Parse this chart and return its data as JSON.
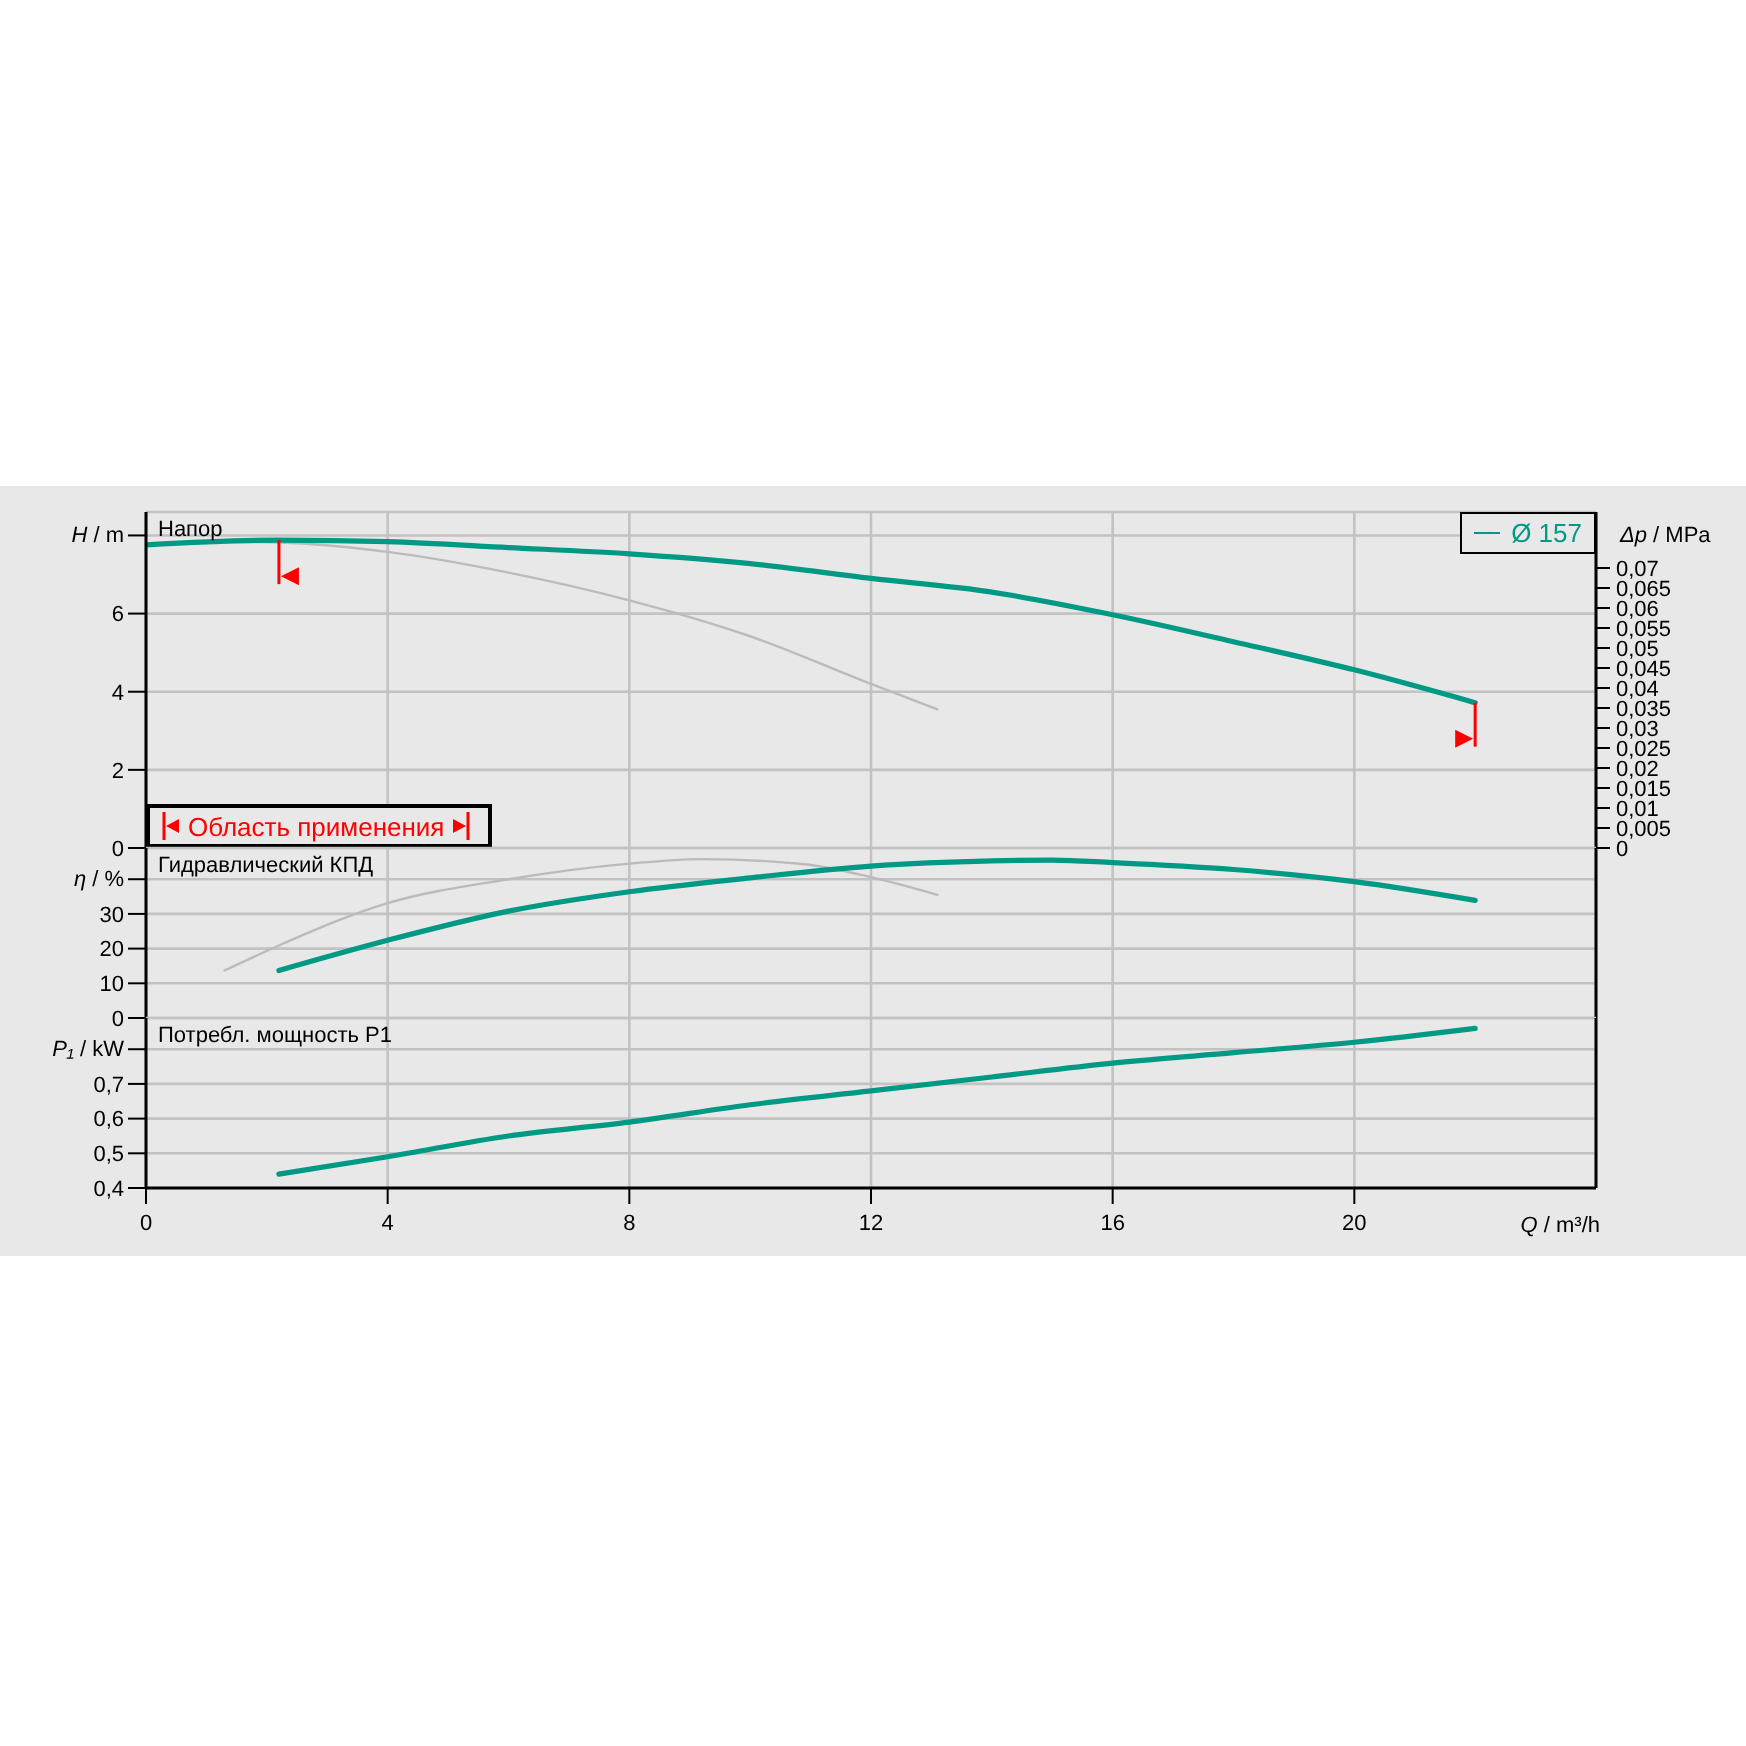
{
  "chart_data": [
    {
      "type": "line",
      "title": "Напор",
      "ylabel": "H / m",
      "y2label": "Δp / MPa",
      "xlim": [
        0,
        24
      ],
      "xticks": [
        0,
        4,
        8,
        12,
        16,
        20
      ],
      "ylim": [
        0,
        8.6
      ],
      "yticks": [
        0,
        2,
        4,
        6,
        {
          "value": 8,
          "label": null
        }
      ],
      "y2lim": [
        0,
        0.084
      ],
      "y2ticks": [
        0,
        {
          "value": 0.005,
          "label": "0,005"
        },
        {
          "value": 0.01,
          "label": "0,01"
        },
        {
          "value": 0.015,
          "label": "0,015"
        },
        {
          "value": 0.02,
          "label": "0,02"
        },
        {
          "value": 0.025,
          "label": "0,025"
        },
        {
          "value": 0.03,
          "label": "0,03"
        },
        {
          "value": 0.035,
          "label": "0,035"
        },
        {
          "value": 0.04,
          "label": "0,04"
        },
        {
          "value": 0.045,
          "label": "0,045"
        },
        {
          "value": 0.05,
          "label": "0,05"
        },
        {
          "value": 0.055,
          "label": "0,055"
        },
        {
          "value": 0.06,
          "label": "0,06"
        },
        {
          "value": 0.065,
          "label": "0,065"
        },
        {
          "value": 0.07,
          "label": "0,07"
        }
      ],
      "grid": true,
      "legend": "top right",
      "tick_labels": "y",
      "ref_lines": [
        {
          "axis": "x",
          "value": 2.2,
          "color": "#ff0000"
        },
        {
          "axis": "x",
          "value": 22,
          "color": "#ff0000"
        }
      ],
      "annotations": [
        "Область применения"
      ],
      "series": [
        {
          "name": "Ø 157",
          "color": "#009a84",
          "x": [
            0,
            2.2,
            4,
            6,
            8,
            10,
            12,
            14,
            16,
            18,
            20,
            22
          ],
          "values": [
            7.76,
            7.88,
            7.84,
            7.69,
            7.53,
            7.28,
            6.9,
            6.55,
            5.97,
            5.28,
            4.56,
            3.72
          ]
        },
        {
          "color": "#bbbbbb",
          "x": [
            1.3,
            2.2,
            4,
            6,
            8,
            10,
            12,
            13.1
          ],
          "values": [
            7.84,
            7.82,
            7.58,
            7.05,
            6.34,
            5.42,
            4.2,
            3.55
          ]
        }
      ]
    },
    {
      "type": "line",
      "title": "Гидравлический КПД",
      "ylabel": "η / %",
      "xlim": [
        0,
        24
      ],
      "xticks": [
        0,
        4,
        8,
        12,
        16,
        20
      ],
      "ylim": [
        0,
        49
      ],
      "yticks": [
        0,
        10,
        20,
        30,
        {
          "value": 40,
          "label": null
        }
      ],
      "grid": true,
      "tick_labels": "y",
      "series": [
        {
          "color": "#009a84",
          "x": [
            2.2,
            4,
            6,
            8,
            10,
            12,
            14,
            15,
            16,
            18,
            20,
            22
          ],
          "values": [
            13.7,
            22.4,
            30.8,
            36.4,
            40.4,
            43.8,
            45.3,
            45.5,
            44.8,
            42.8,
            39.3,
            33.9
          ]
        },
        {
          "color": "#bbbbbb",
          "x": [
            1.3,
            2.2,
            4,
            6,
            8,
            9.2,
            10.9,
            12,
            13.1
          ],
          "values": [
            13.7,
            20.9,
            33.1,
            40,
            44.5,
            45.8,
            44.3,
            40.6,
            35.5
          ]
        }
      ]
    },
    {
      "type": "line",
      "title": "Потребл. мощность P1",
      "ylabel": "P₁ / kW",
      "xlabel": "Q / m³/h",
      "xlim": [
        0,
        24
      ],
      "xticks": [
        0,
        4,
        8,
        12,
        16,
        20
      ],
      "ylim": [
        0.4,
        0.89
      ],
      "yticks": [
        {
          "value": 0.4,
          "label": "0,4"
        },
        {
          "value": 0.5,
          "label": "0,5"
        },
        {
          "value": 0.6,
          "label": "0,6"
        },
        {
          "value": 0.7,
          "label": "0,7"
        },
        {
          "value": 0.8,
          "label": null
        }
      ],
      "grid": true,
      "series": [
        {
          "color": "#009a84",
          "x": [
            2.2,
            4,
            6,
            8,
            10,
            12,
            14,
            16,
            18,
            20,
            22
          ],
          "values": [
            0.44,
            0.49,
            0.55,
            0.59,
            0.64,
            0.68,
            0.72,
            0.76,
            0.79,
            0.82,
            0.86
          ]
        }
      ]
    }
  ]
}
